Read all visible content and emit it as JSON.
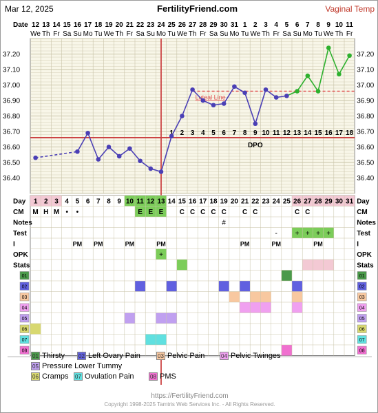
{
  "header": {
    "date": "Mar 12, 2025",
    "site": "FertilityFriend.com",
    "type": "Vaginal Temp"
  },
  "chart_data": {
    "type": "line",
    "ylim": [
      36.3,
      37.3
    ],
    "y_ticks": [
      "37.20",
      "37.10",
      "37.00",
      "36.90",
      "36.80",
      "36.70",
      "36.60",
      "36.50",
      "36.40"
    ],
    "date_row_label": "Date",
    "dates": [
      "12",
      "13",
      "14",
      "15",
      "16",
      "17",
      "18",
      "19",
      "20",
      "21",
      "22",
      "23",
      "24",
      "25",
      "26",
      "27",
      "28",
      "29",
      "30",
      "31",
      "1",
      "2",
      "3",
      "4",
      "5",
      "6",
      "7",
      "8",
      "9",
      "10",
      "11"
    ],
    "weekdays": [
      "We",
      "Th",
      "Fr",
      "Sa",
      "Su",
      "Mo",
      "Tu",
      "We",
      "Th",
      "Fr",
      "Sa",
      "Su",
      "Mo",
      "Tu",
      "We",
      "Th",
      "Fr",
      "Sa",
      "Su",
      "Mo",
      "Tu",
      "We",
      "Th",
      "Fr",
      "Sa",
      "Su",
      "Mo",
      "Tu",
      "We",
      "Th",
      "Fr"
    ],
    "days": [
      "1",
      "2",
      "3",
      "4",
      "5",
      "6",
      "7",
      "8",
      "9",
      "10",
      "11",
      "12",
      "13",
      "14",
      "15",
      "16",
      "17",
      "18",
      "19",
      "20",
      "21",
      "22",
      "23",
      "24",
      "25",
      "26",
      "27",
      "28",
      "29",
      "30",
      "31"
    ],
    "temps": [
      36.53,
      null,
      null,
      null,
      36.57,
      36.69,
      36.52,
      36.6,
      36.54,
      36.59,
      36.51,
      36.46,
      36.44,
      36.67,
      36.8,
      36.97,
      36.9,
      36.87,
      36.88,
      36.99,
      36.95,
      36.75,
      36.97,
      36.92,
      36.93,
      36.96,
      37.06,
      36.96,
      37.24,
      37.07,
      37.19
    ],
    "temp_colors": [
      "blue",
      "blue",
      "blue",
      "blue",
      "blue",
      "blue",
      "blue",
      "blue",
      "blue",
      "blue",
      "blue",
      "blue",
      "blue",
      "blue",
      "blue",
      "blue",
      "blue",
      "blue",
      "blue",
      "blue",
      "blue",
      "blue",
      "blue",
      "blue",
      "blue",
      "green",
      "green",
      "green",
      "green",
      "green",
      "green"
    ],
    "coverline": 36.66,
    "luteal_line": 36.96,
    "luteal_label": "Luteal Line",
    "ovulation_day": 13,
    "dpo_label": "DPO",
    "dpo": [
      "1",
      "2",
      "3",
      "4",
      "5",
      "6",
      "7",
      "8",
      "9",
      "10",
      "11",
      "12",
      "13",
      "14",
      "15",
      "16",
      "17",
      "18"
    ],
    "rows": {
      "day": "Day",
      "cm": "CM",
      "notes": "Notes",
      "test": "Test",
      "i": "I",
      "opk": "OPK",
      "stats": "Stats"
    },
    "cm_values": [
      "M",
      "H",
      "M",
      "•",
      "•",
      "",
      "",
      "",
      "",
      "",
      "E",
      "E",
      "E",
      "",
      "C",
      "C",
      "C",
      "C",
      "C",
      "",
      "C",
      "C",
      "",
      "",
      "",
      "C",
      "C",
      "",
      "",
      "",
      ""
    ],
    "notes_values": [
      "",
      "",
      "",
      "",
      "",
      "",
      "",
      "",
      "",
      "",
      "",
      "",
      "",
      "",
      "",
      "",
      "",
      "",
      "#",
      "",
      "",
      "",
      "",
      "",
      "",
      "",
      "",
      "",
      "",
      "",
      ""
    ],
    "test_values": [
      "",
      "",
      "",
      "",
      "",
      "",
      "",
      "",
      "",
      "",
      "",
      "",
      "",
      "",
      "",
      "",
      "",
      "",
      "",
      "",
      "",
      "",
      "",
      "-",
      "",
      "+",
      "+",
      "+",
      "+",
      "",
      ""
    ],
    "i_values": [
      "",
      "",
      "",
      "",
      "PM",
      "",
      "PM",
      "",
      "",
      "PM",
      "",
      "",
      "PM",
      "",
      "",
      "",
      "",
      "",
      "",
      "",
      "PM",
      "",
      "",
      "PM",
      "",
      "",
      "",
      "PM",
      "",
      "",
      ""
    ],
    "opk_values": [
      "",
      "",
      "",
      "",
      "",
      "",
      "",
      "",
      "",
      "",
      "",
      "",
      "+",
      "",
      "",
      "",
      "",
      "",
      "",
      "",
      "",
      "",
      "",
      "",
      "",
      "",
      "",
      "",
      "",
      "",
      ""
    ],
    "stats_days": [
      15
    ],
    "stats_pink_days": [
      27,
      28,
      29
    ],
    "symptom_codes": [
      "01",
      "02",
      "03",
      "04",
      "05",
      "06",
      "07",
      "08"
    ],
    "symptom_cells": {
      "01": [
        25
      ],
      "02": [
        11,
        14,
        19,
        21,
        26
      ],
      "03": [
        20,
        22,
        23,
        26
      ],
      "04": [
        21,
        22,
        23,
        26
      ],
      "05": [
        10,
        13,
        14
      ],
      "06": [
        1
      ],
      "07": [
        12,
        13
      ],
      "08": [
        25
      ]
    },
    "legend": [
      {
        "code": "01",
        "label": "Thirsty"
      },
      {
        "code": "02",
        "label": "Left Ovary Pain"
      },
      {
        "code": "03",
        "label": "Pelvic Pain"
      },
      {
        "code": "04",
        "label": "Pelvic Twinges"
      },
      {
        "code": "05",
        "label": "Pressure Lower Tummy"
      },
      {
        "code": "06",
        "label": "Cramps"
      },
      {
        "code": "07",
        "label": "Ovulation Pain"
      },
      {
        "code": "08",
        "label": "PMS"
      }
    ],
    "colors": {
      "blue": "#4a3fb5",
      "green": "#2db02d",
      "coverline": "#cc4444",
      "ovulation": "#cc4444",
      "luteal": "#e05050",
      "grid_bg": "#f8f6e8",
      "grid_line": "#c9c4a8",
      "fertile": "#7ccd5a",
      "menses": "#f3c9d4",
      "s01": "#4a9a4a",
      "s02": "#6060e0",
      "s03": "#f8c8a0",
      "s04": "#f0a0f0",
      "s05": "#c0a0f0",
      "s06": "#d8d870",
      "s07": "#60e0e0",
      "s08": "#f070d0"
    }
  },
  "footer": {
    "url": "https://FertilityFriend.com",
    "copyright": "Copyright 1998-2025 Tamtris Web Services Inc. - All Rights Reserved."
  }
}
